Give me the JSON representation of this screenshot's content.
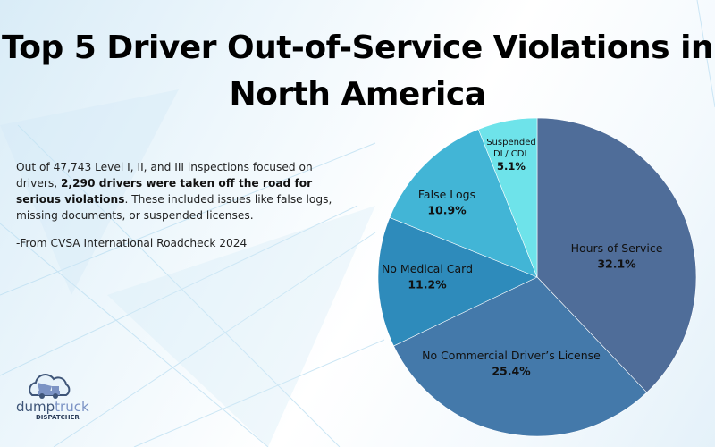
{
  "title_line1": "Top 5 Driver Out-of-Service Violations in",
  "title_line2": "North America",
  "description": {
    "part1": "Out of 47,743 Level I, II, and III inspections focused on drivers, ",
    "bold": "2,290 drivers were taken off the road for serious violations",
    "part2": ". These included issues like false logs, missing documents, or suspended licenses."
  },
  "source": "-From CVSA International  Roadcheck 2024",
  "logo": {
    "text_main": "dumptruck",
    "text_sub": "DISPATCHER"
  },
  "chart_data": {
    "type": "pie",
    "start": "12 o'clock, clockwise",
    "slices": [
      {
        "label": "Hours of Service",
        "value": 32.1,
        "value_label": "32.1%",
        "color": "#4f6d99"
      },
      {
        "label": "No Commercial Driver’s License",
        "value": 25.4,
        "value_label": "25.4%",
        "color": "#4479aa"
      },
      {
        "label": "No Medical Card",
        "value": 11.2,
        "value_label": "11.2%",
        "color": "#2e8bbb"
      },
      {
        "label": "False Logs",
        "value": 10.9,
        "value_label": "10.9%",
        "color": "#42b5d6"
      },
      {
        "label": "Suspended DL/ CDL",
        "value": 5.1,
        "value_label": "5.1%",
        "color": "#6ee3ea"
      }
    ]
  }
}
